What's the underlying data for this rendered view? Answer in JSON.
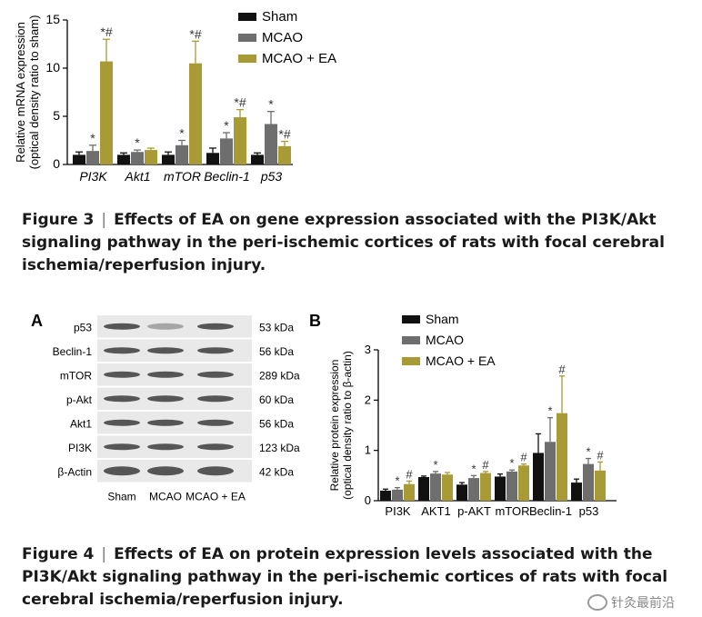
{
  "figure3": {
    "caption_label": "Figure 3",
    "caption_text": "Effects of EA on gene expression associated with the PI3K/Akt signaling pathway in the peri-ischemic cortices of rats with focal cerebral ischemia/reperfusion injury.",
    "sep": "|"
  },
  "figure4": {
    "caption_label": "Figure 4",
    "caption_text": "Effects of EA on protein expression levels associated with the PI3K/Akt signaling pathway in the peri-ischemic cortices of rats with focal cerebral ischemia/reperfusion injury.",
    "sep": "|",
    "panel_a": "A",
    "panel_b": "B",
    "blot_rows": [
      {
        "label": "p53",
        "kda": "53 kDa"
      },
      {
        "label": "Beclin-1",
        "kda": "56 kDa"
      },
      {
        "label": "mTOR",
        "kda": "289 kDa"
      },
      {
        "label": "p-Akt",
        "kda": "60 kDa"
      },
      {
        "label": "Akt1",
        "kda": "56 kDa"
      },
      {
        "label": "PI3K",
        "kda": "123 kDa"
      },
      {
        "label": "β-Actin",
        "kda": "42 kDa"
      }
    ],
    "blot_lanes": [
      "Sham",
      "MCAO",
      "MCAO + EA"
    ]
  },
  "chart_data": [
    {
      "type": "bar",
      "ylabel": "Relative mRNA expression\n(optical density ratio to sham)",
      "ylim": [
        0,
        15
      ],
      "yticks": [
        0,
        5,
        10,
        15
      ],
      "categories": [
        "PI3K",
        "Akt1",
        "mTOR",
        "Beclin-1",
        "p53"
      ],
      "category_style": "italic",
      "legend_placement": "top-right",
      "series": [
        {
          "name": "Sham",
          "color": "#111111",
          "values": [
            1.0,
            1.0,
            1.0,
            1.2,
            1.0
          ],
          "errors": [
            0.3,
            0.2,
            0.3,
            0.5,
            0.2
          ],
          "marks": [
            "",
            "",
            "",
            "",
            ""
          ]
        },
        {
          "name": "MCAO",
          "color": "#6e6e6e",
          "values": [
            1.4,
            1.3,
            2.0,
            2.7,
            4.2
          ],
          "errors": [
            0.6,
            0.2,
            0.5,
            0.6,
            1.3
          ],
          "marks": [
            "*",
            "*",
            "*",
            "*",
            "*"
          ]
        },
        {
          "name": "MCAO + EA",
          "color": "#a89a35",
          "values": [
            10.7,
            1.5,
            10.5,
            4.9,
            1.9
          ],
          "errors": [
            2.3,
            0.2,
            2.3,
            0.8,
            0.5
          ],
          "marks": [
            "*#",
            "",
            "*#",
            "*#",
            "*#"
          ]
        }
      ]
    },
    {
      "type": "bar",
      "ylabel": "Relative protein expression\n(optical density ratio to β-actin)",
      "ylim": [
        0,
        3
      ],
      "yticks": [
        0,
        1,
        2,
        3
      ],
      "categories": [
        "PI3K",
        "AKT1",
        "p-AKT",
        "mTOR",
        "Beclin-1",
        "p53"
      ],
      "category_style": "normal",
      "legend_placement": "top-left",
      "series": [
        {
          "name": "Sham",
          "color": "#111111",
          "values": [
            0.2,
            0.47,
            0.32,
            0.48,
            0.95,
            0.36
          ],
          "errors": [
            0.03,
            0.02,
            0.04,
            0.05,
            0.38,
            0.07
          ],
          "marks": [
            "",
            "",
            "",
            "",
            "",
            ""
          ]
        },
        {
          "name": "MCAO",
          "color": "#6e6e6e",
          "values": [
            0.22,
            0.54,
            0.45,
            0.58,
            1.17,
            0.73
          ],
          "errors": [
            0.04,
            0.04,
            0.05,
            0.03,
            0.48,
            0.11
          ],
          "marks": [
            "*",
            "*",
            "*",
            "*",
            "*",
            "*"
          ]
        },
        {
          "name": "MCAO + EA",
          "color": "#a89a35",
          "values": [
            0.33,
            0.52,
            0.55,
            0.7,
            1.74,
            0.6
          ],
          "errors": [
            0.06,
            0.04,
            0.03,
            0.03,
            0.74,
            0.17
          ],
          "marks": [
            "#",
            "",
            "#",
            "#",
            "#",
            "#"
          ]
        }
      ]
    }
  ],
  "watermark": "针灸最前沿"
}
